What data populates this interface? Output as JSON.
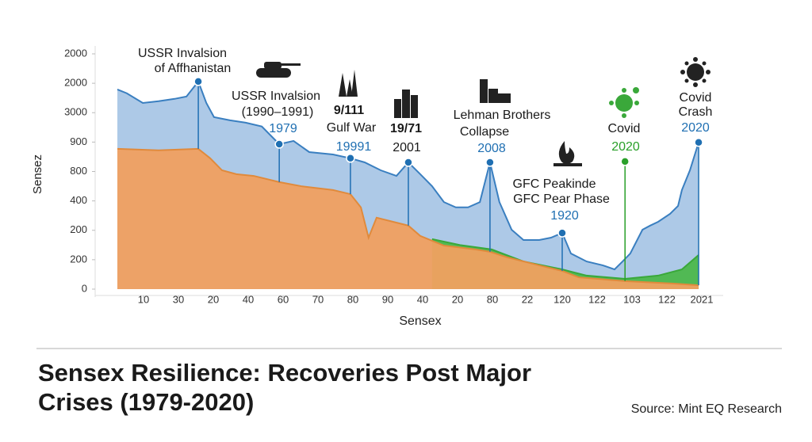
{
  "chart_data": {
    "type": "area",
    "title_lines": [
      "Sensex Resilience: Recoveries Post Major",
      "Crises (1979-2020)"
    ],
    "source": "Source: Mint EQ Research",
    "x_label": "Sensex",
    "y_label": "Sensez",
    "xlim": [
      0,
      17.5
    ],
    "ylim": [
      0,
      8
    ],
    "xticks": [
      {
        "value": 1,
        "label": "10"
      },
      {
        "value": 2,
        "label": "30"
      },
      {
        "value": 3,
        "label": "20"
      },
      {
        "value": 4,
        "label": "40"
      },
      {
        "value": 5,
        "label": "60"
      },
      {
        "value": 6,
        "label": "70"
      },
      {
        "value": 7,
        "label": "80"
      },
      {
        "value": 8,
        "label": "90"
      },
      {
        "value": 9,
        "label": "40"
      },
      {
        "value": 10,
        "label": "20"
      },
      {
        "value": 11,
        "label": "80"
      },
      {
        "value": 12,
        "label": "22"
      },
      {
        "value": 13,
        "label": "120"
      },
      {
        "value": 14,
        "label": "122"
      },
      {
        "value": 15,
        "label": "103"
      },
      {
        "value": 16,
        "label": "122"
      },
      {
        "value": 17,
        "label": "2021"
      }
    ],
    "yticks": [
      {
        "value": 0,
        "label": "0"
      },
      {
        "value": 1,
        "label": "200"
      },
      {
        "value": 2,
        "label": "200"
      },
      {
        "value": 3,
        "label": "400"
      },
      {
        "value": 4,
        "label": "800"
      },
      {
        "value": 5,
        "label": "900"
      },
      {
        "value": 6,
        "label": "3000"
      },
      {
        "value": 7,
        "label": "2000"
      },
      {
        "value": 8,
        "label": "2000"
      }
    ],
    "series": [
      {
        "color": "#3a7fc0",
        "fill": "#a9c6e6",
        "x": [
          0.25,
          0.52,
          0.98,
          1.43,
          1.89,
          2.23,
          2.57,
          2.8,
          3.02,
          3.48,
          3.93,
          4.39,
          4.89,
          5.3,
          5.75,
          6.43,
          6.93,
          7.34,
          7.8,
          8.25,
          8.59,
          8.93,
          9.27,
          9.61,
          9.95,
          10.3,
          10.64,
          10.93,
          11.2,
          11.55,
          11.89,
          12.34,
          12.68,
          13,
          13.25,
          13.7,
          14.16,
          14.5,
          14.73,
          14.95,
          15.3,
          15.52,
          15.75,
          16.09,
          16.32,
          16.43,
          16.66,
          16.91
        ],
        "values": [
          6.79,
          6.66,
          6.33,
          6.39,
          6.47,
          6.55,
          7.06,
          6.33,
          5.85,
          5.74,
          5.66,
          5.53,
          4.93,
          5.04,
          4.66,
          4.58,
          4.45,
          4.31,
          4.04,
          3.85,
          4.31,
          3.91,
          3.5,
          2.96,
          2.78,
          2.78,
          2.96,
          4.31,
          2.96,
          2.02,
          1.67,
          1.67,
          1.75,
          1.91,
          1.21,
          0.94,
          0.81,
          0.67,
          0.94,
          1.21,
          2.02,
          2.16,
          2.29,
          2.56,
          2.83,
          3.37,
          4.04,
          4.99
        ]
      },
      {
        "color": "#3aa83a",
        "fill": "#4cb84c",
        "x": [
          9.27,
          10.07,
          10.98,
          11.89,
          13,
          13.7,
          14.8,
          15.75,
          16.43,
          16.91
        ],
        "values": [
          1.7,
          1.5,
          1.35,
          0.94,
          0.67,
          0.46,
          0.35,
          0.46,
          0.67,
          1.16
        ]
      },
      {
        "color": "#e08a3c",
        "fill": "#f0a060",
        "x": [
          0.25,
          1.43,
          2.57,
          2.91,
          3.25,
          3.66,
          4.16,
          4.89,
          5.52,
          6.43,
          6.93,
          7.23,
          7.45,
          7.68,
          8.59,
          8.93,
          9.61,
          10.52,
          10.93,
          11.43,
          12.34,
          13,
          13.48,
          14.84,
          16.2,
          16.91
        ],
        "values": [
          4.77,
          4.72,
          4.77,
          4.45,
          4.04,
          3.91,
          3.85,
          3.64,
          3.5,
          3.37,
          3.23,
          2.78,
          1.75,
          2.43,
          2.16,
          1.81,
          1.48,
          1.35,
          1.27,
          1.08,
          0.81,
          0.62,
          0.4,
          0.27,
          0.19,
          0.13
        ]
      }
    ],
    "annotations": [
      {
        "lines": [
          "USSR Invalsion",
          "of Affhanistan"
        ],
        "x": 2.57,
        "y": 7.06,
        "color": "#1f6fb2"
      },
      {
        "lines": [
          "USSR Invalsion",
          "(1990–1991)",
          "1979"
        ],
        "x": 4.89,
        "y": 4.93,
        "color": "#1f6fb2"
      },
      {
        "lines": [
          "9/111",
          "Gulf War",
          "19991"
        ],
        "x": 6.93,
        "y": 4.45,
        "color": "#1f6fb2"
      },
      {
        "lines": [
          "19/71",
          "2001"
        ],
        "x": 8.59,
        "y": 4.31,
        "color": "#1f6fb2"
      },
      {
        "lines": [
          "Lehman Brothers",
          "Collapse",
          "2008"
        ],
        "x": 10.93,
        "y": 4.31,
        "color": "#1f6fb2"
      },
      {
        "lines": [
          "GFC Peakinde",
          "GFC Pear Phase",
          "1920"
        ],
        "x": 13,
        "y": 1.91,
        "color": "#1f6fb2"
      },
      {
        "lines": [
          "Covid",
          "2020"
        ],
        "x": 14.8,
        "y": 4.34,
        "color": "#2aa02a"
      },
      {
        "lines": [
          "Covid",
          "Crash",
          "2020"
        ],
        "x": 16.91,
        "y": 4.99,
        "color": "#1f6fb2"
      }
    ]
  }
}
